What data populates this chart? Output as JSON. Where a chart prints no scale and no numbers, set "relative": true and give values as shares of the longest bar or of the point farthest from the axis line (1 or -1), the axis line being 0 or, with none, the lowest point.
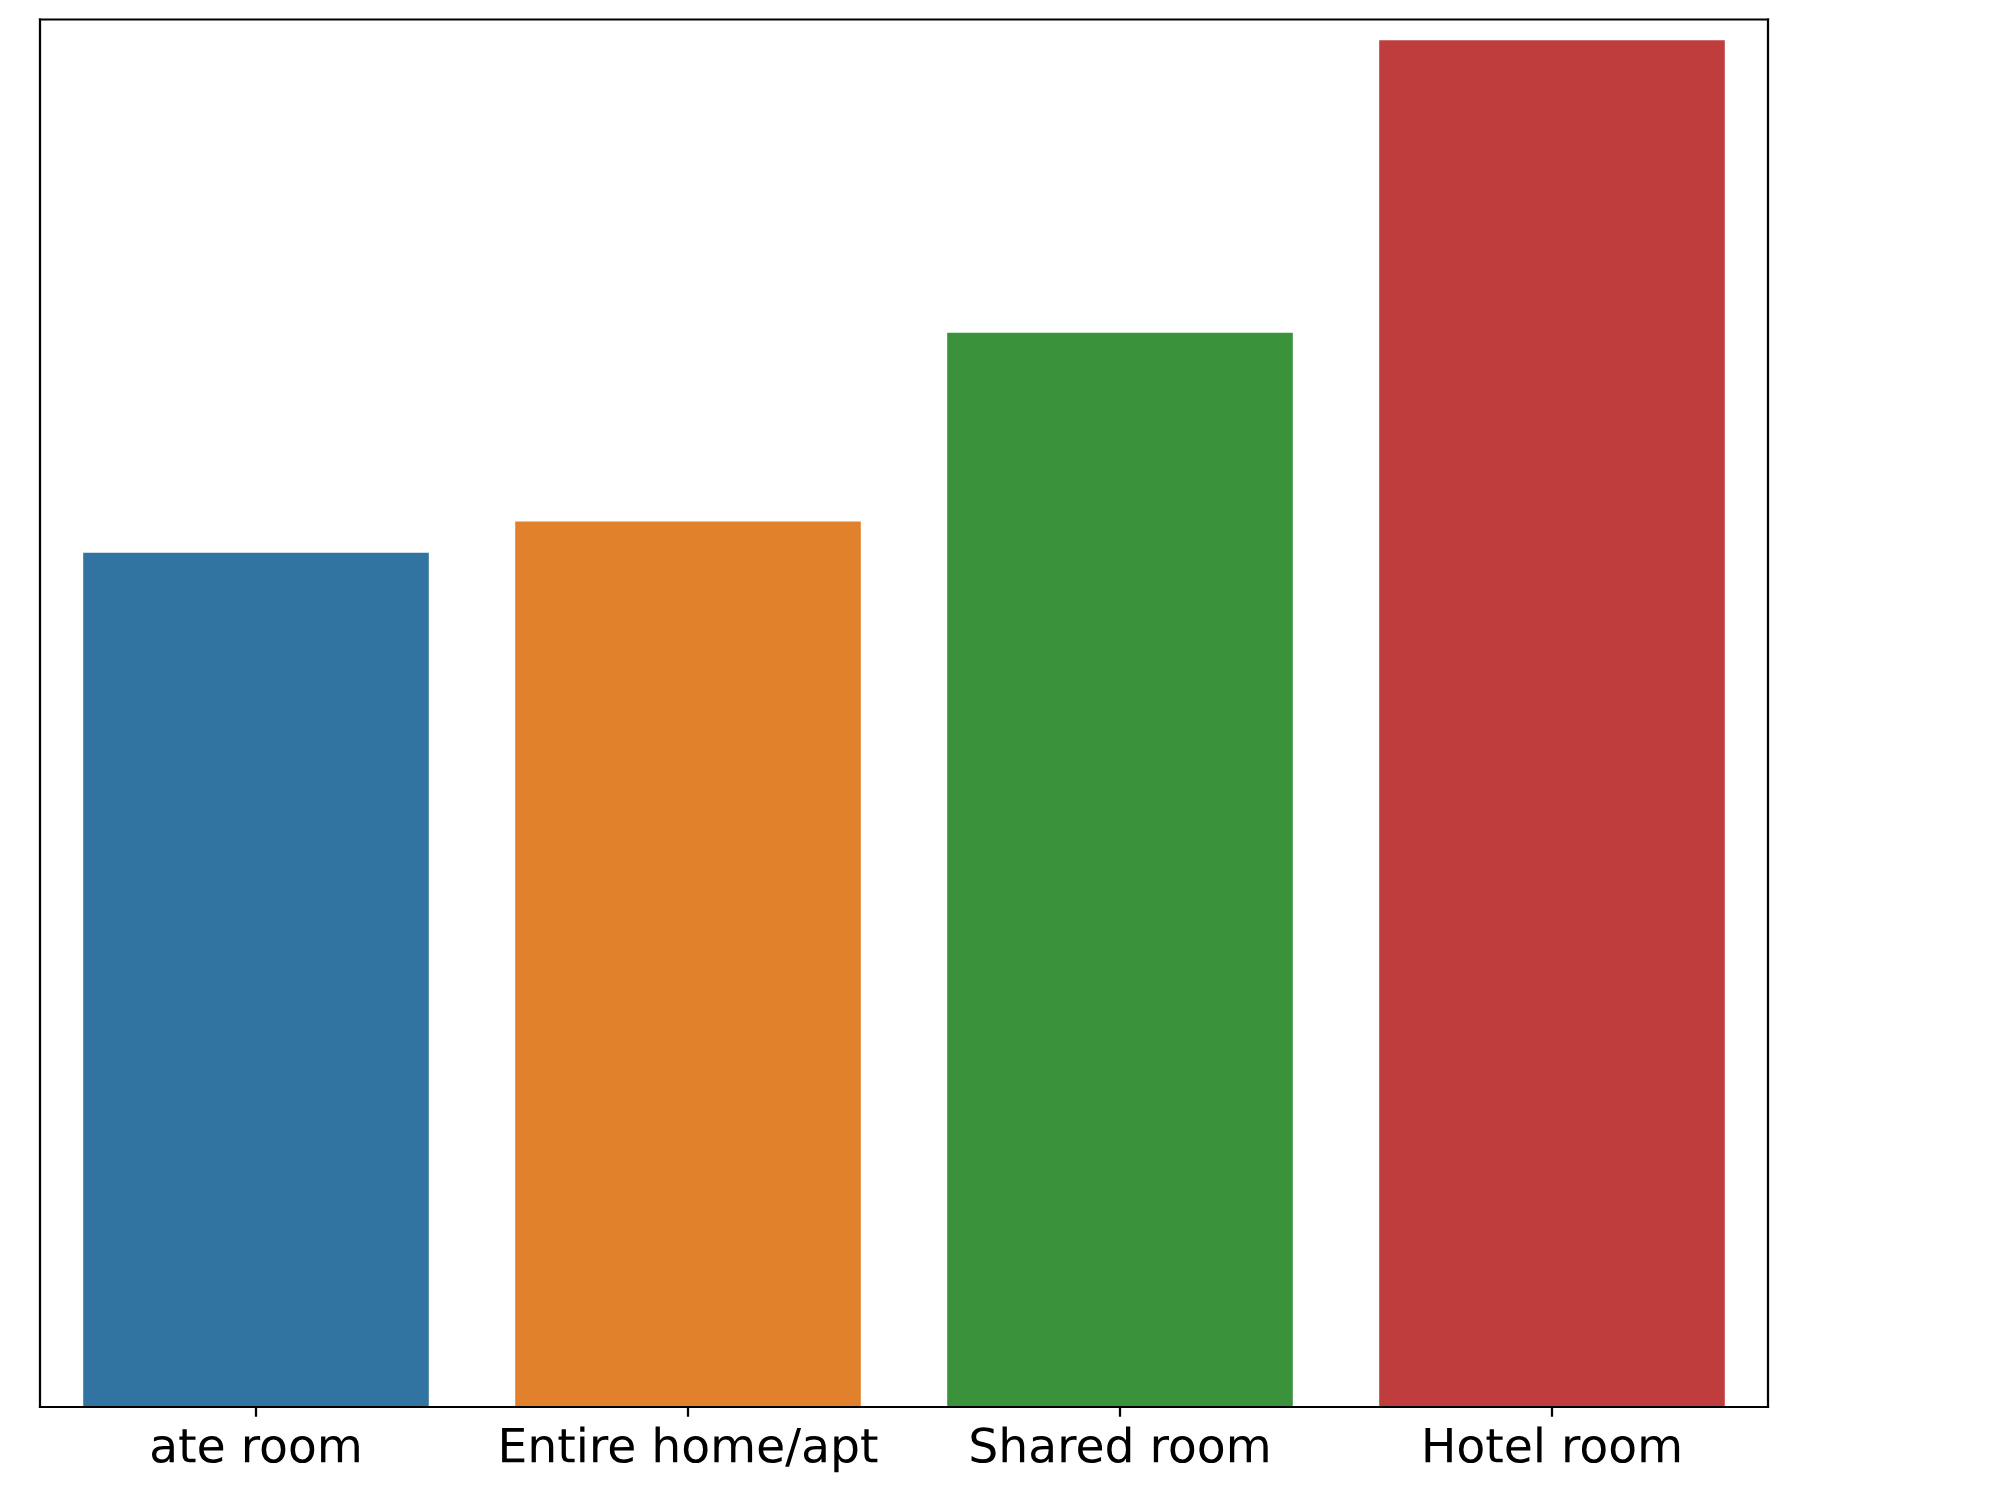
{
  "chart_data": {
    "type": "bar",
    "relative": true,
    "categories": [
      "ate room",
      "Entire home/apt",
      "Shared room",
      "Hotel room"
    ],
    "values": [
      0.625,
      0.648,
      0.786,
      1
    ],
    "colors": [
      "#3274a1",
      "#e1812c",
      "#3a923a",
      "#c03d3e"
    ],
    "grid": false
  }
}
